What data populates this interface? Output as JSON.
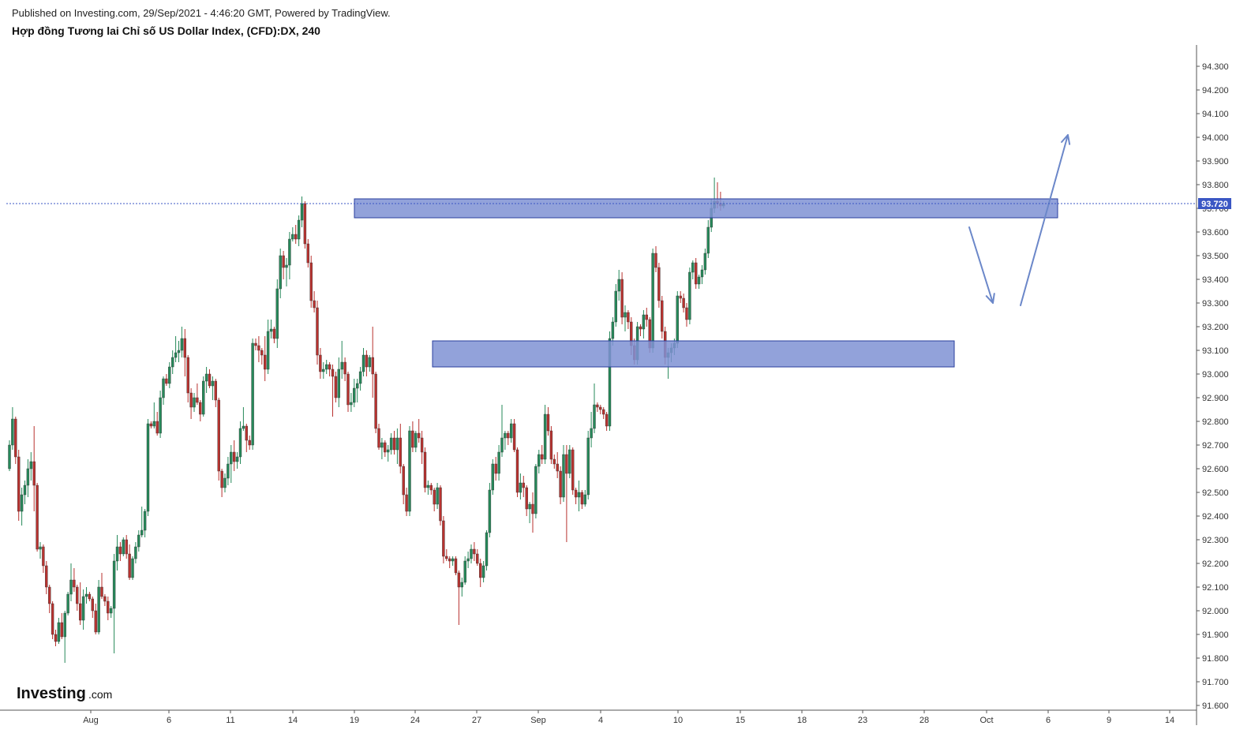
{
  "header": {
    "published": "Published on Investing.com, 29/Sep/2021 - 4:46:20 GMT, Powered by TradingView.",
    "title": "Hợp đồng Tương lai Chỉ số US Dollar Index, (CFD):DX, 240"
  },
  "logo": {
    "main": "Investing",
    "suffix": ".com"
  },
  "chart_data": {
    "type": "candlestick",
    "symbol": "DX",
    "interval": "240",
    "y_axis": {
      "range": [
        91.55,
        94.4
      ],
      "ticks": [
        "94.300",
        "94.200",
        "94.100",
        "94.000",
        "93.900",
        "93.800",
        "93.700",
        "93.600",
        "93.500",
        "93.400",
        "93.300",
        "93.200",
        "93.100",
        "93.000",
        "92.900",
        "92.800",
        "92.700",
        "92.600",
        "92.500",
        "92.400",
        "92.300",
        "92.200",
        "92.100",
        "92.000",
        "91.900",
        "91.800",
        "91.700",
        "91.600"
      ]
    },
    "x_axis": {
      "ticks": [
        "Aug",
        "6",
        "11",
        "14",
        "19",
        "24",
        "27",
        "Sep",
        "4",
        "10",
        "15",
        "18",
        "23",
        "28",
        "Oct",
        "6",
        "9",
        "14"
      ]
    },
    "last_price": {
      "value": 93.72,
      "label": "93.720"
    },
    "colors": {
      "up": "#26895a",
      "down": "#b8322f",
      "zone_fill": "#7f92d4",
      "zone_stroke": "#2a3f9e",
      "arrow": "#6b87c9",
      "last_price": "#3b57c4"
    },
    "zones": [
      {
        "name": "resistance-zone",
        "price_top": 93.74,
        "price_bottom": 93.66
      },
      {
        "name": "support-zone",
        "price_top": 93.14,
        "price_bottom": 93.03
      }
    ],
    "arrows": [
      {
        "name": "down-arrow",
        "from": 93.62,
        "to": 93.3
      },
      {
        "name": "up-arrow",
        "from": 93.29,
        "to": 94.01
      }
    ],
    "candles": [
      [
        92.6,
        92.72,
        92.59,
        92.7
      ],
      [
        92.7,
        92.86,
        92.68,
        92.81
      ],
      [
        92.81,
        92.82,
        92.62,
        92.65
      ],
      [
        92.65,
        92.68,
        92.38,
        92.42
      ],
      [
        92.42,
        92.52,
        92.36,
        92.49
      ],
      [
        92.49,
        92.55,
        92.45,
        92.53
      ],
      [
        92.53,
        92.64,
        92.48,
        92.6
      ],
      [
        92.6,
        92.67,
        92.55,
        92.63
      ],
      [
        92.63,
        92.78,
        92.42,
        92.53
      ],
      [
        92.53,
        92.54,
        92.25,
        92.26
      ],
      [
        92.26,
        92.29,
        92.22,
        92.27
      ],
      [
        92.27,
        92.28,
        92.16,
        92.19
      ],
      [
        92.19,
        92.21,
        92.07,
        92.1
      ],
      [
        92.1,
        92.11,
        91.99,
        92.03
      ],
      [
        92.03,
        92.04,
        91.88,
        91.9
      ],
      [
        91.9,
        91.92,
        91.85,
        91.87
      ],
      [
        91.87,
        91.97,
        91.86,
        91.95
      ],
      [
        91.95,
        91.99,
        91.88,
        91.89
      ],
      [
        91.89,
        92.0,
        91.78,
        91.99
      ],
      [
        91.99,
        92.08,
        91.98,
        92.07
      ],
      [
        92.07,
        92.2,
        92.04,
        92.13
      ],
      [
        92.13,
        92.18,
        92.08,
        92.1
      ],
      [
        92.1,
        92.11,
        92.0,
        92.03
      ],
      [
        92.03,
        92.12,
        91.94,
        91.96
      ],
      [
        91.96,
        92.09,
        91.92,
        92.06
      ],
      [
        92.06,
        92.1,
        92.03,
        92.07
      ],
      [
        92.07,
        92.08,
        92.04,
        92.05
      ],
      [
        92.05,
        92.06,
        91.97,
        92.0
      ],
      [
        92.0,
        92.03,
        91.9,
        91.91
      ],
      [
        91.91,
        92.13,
        91.9,
        92.1
      ],
      [
        92.1,
        92.16,
        92.05,
        92.06
      ],
      [
        92.06,
        92.07,
        92.02,
        92.04
      ],
      [
        92.04,
        92.06,
        91.96,
        91.99
      ],
      [
        91.99,
        92.02,
        91.97,
        92.01
      ],
      [
        92.01,
        92.24,
        91.82,
        92.21
      ],
      [
        92.21,
        92.32,
        92.17,
        92.27
      ],
      [
        92.27,
        92.29,
        92.21,
        92.24
      ],
      [
        92.24,
        92.31,
        92.23,
        92.3
      ],
      [
        92.3,
        92.32,
        92.22,
        92.24
      ],
      [
        92.24,
        92.28,
        92.13,
        92.14
      ],
      [
        92.14,
        92.23,
        92.13,
        92.22
      ],
      [
        92.22,
        92.29,
        92.2,
        92.27
      ],
      [
        92.27,
        92.34,
        92.25,
        92.32
      ],
      [
        92.32,
        92.44,
        92.31,
        92.34
      ],
      [
        92.34,
        92.43,
        92.31,
        92.42
      ],
      [
        92.42,
        92.81,
        92.4,
        92.79
      ],
      [
        92.79,
        92.8,
        92.77,
        92.78
      ],
      [
        92.78,
        92.88,
        92.77,
        92.8
      ],
      [
        92.8,
        92.84,
        92.74,
        92.75
      ],
      [
        92.75,
        92.93,
        92.73,
        92.9
      ],
      [
        92.9,
        92.99,
        92.87,
        92.98
      ],
      [
        92.98,
        93.0,
        92.95,
        92.96
      ],
      [
        92.96,
        93.05,
        92.94,
        93.03
      ],
      [
        93.03,
        93.1,
        93.0,
        93.07
      ],
      [
        93.07,
        93.16,
        93.05,
        93.09
      ],
      [
        93.09,
        93.14,
        93.05,
        93.1
      ],
      [
        93.1,
        93.2,
        93.07,
        93.15
      ],
      [
        93.15,
        93.19,
        92.99,
        93.07
      ],
      [
        93.07,
        93.08,
        92.88,
        92.92
      ],
      [
        92.92,
        92.94,
        92.81,
        92.86
      ],
      [
        92.86,
        92.92,
        92.84,
        92.9
      ],
      [
        92.9,
        92.96,
        92.87,
        92.88
      ],
      [
        92.88,
        92.89,
        92.8,
        92.83
      ],
      [
        92.83,
        92.99,
        92.82,
        92.97
      ],
      [
        92.97,
        93.03,
        92.92,
        93.0
      ],
      [
        93.0,
        93.02,
        92.94,
        92.95
      ],
      [
        92.95,
        92.99,
        92.89,
        92.97
      ],
      [
        92.97,
        92.98,
        92.86,
        92.89
      ],
      [
        92.89,
        92.9,
        92.55,
        92.59
      ],
      [
        92.59,
        92.6,
        92.48,
        92.52
      ],
      [
        92.52,
        92.58,
        92.5,
        92.56
      ],
      [
        92.56,
        92.65,
        92.53,
        92.62
      ],
      [
        92.62,
        92.7,
        92.54,
        92.67
      ],
      [
        92.67,
        92.72,
        92.59,
        92.63
      ],
      [
        92.63,
        92.67,
        92.6,
        92.65
      ],
      [
        92.65,
        92.8,
        92.62,
        92.77
      ],
      [
        92.77,
        92.86,
        92.76,
        92.78
      ],
      [
        92.78,
        92.79,
        92.67,
        92.72
      ],
      [
        92.72,
        92.74,
        92.68,
        92.7
      ],
      [
        92.7,
        93.15,
        92.68,
        93.13
      ],
      [
        93.13,
        93.15,
        93.1,
        93.12
      ],
      [
        93.12,
        93.16,
        93.05,
        93.1
      ],
      [
        93.1,
        93.11,
        93.04,
        93.08
      ],
      [
        93.08,
        93.16,
        92.97,
        93.02
      ],
      [
        93.02,
        93.23,
        93.0,
        93.18
      ],
      [
        93.18,
        93.23,
        93.15,
        93.19
      ],
      [
        93.19,
        93.2,
        93.13,
        93.15
      ],
      [
        93.15,
        93.4,
        93.11,
        93.36
      ],
      [
        93.36,
        93.53,
        93.32,
        93.5
      ],
      [
        93.5,
        93.52,
        93.4,
        93.45
      ],
      [
        93.45,
        93.49,
        93.37,
        93.46
      ],
      [
        93.46,
        93.6,
        93.4,
        93.57
      ],
      [
        93.57,
        93.62,
        93.56,
        93.59
      ],
      [
        93.59,
        93.63,
        93.55,
        93.57
      ],
      [
        93.57,
        93.67,
        93.54,
        93.65
      ],
      [
        93.65,
        93.75,
        93.62,
        93.72
      ],
      [
        93.72,
        93.73,
        93.53,
        93.55
      ],
      [
        93.55,
        93.57,
        93.45,
        93.47
      ],
      [
        93.47,
        93.5,
        93.28,
        93.31
      ],
      [
        93.31,
        93.35,
        93.26,
        93.28
      ],
      [
        93.28,
        93.31,
        93.04,
        93.08
      ],
      [
        93.08,
        93.11,
        92.98,
        93.01
      ],
      [
        93.01,
        93.05,
        92.98,
        93.02
      ],
      [
        93.02,
        93.06,
        93.0,
        93.04
      ],
      [
        93.04,
        93.05,
        92.99,
        93.02
      ],
      [
        93.02,
        93.04,
        92.82,
        92.99
      ],
      [
        92.99,
        93.01,
        92.88,
        92.9
      ],
      [
        92.9,
        93.07,
        92.86,
        93.02
      ],
      [
        93.02,
        93.14,
        92.98,
        93.05
      ],
      [
        93.05,
        93.07,
        92.97,
        93.0
      ],
      [
        93.0,
        93.01,
        92.84,
        92.87
      ],
      [
        92.87,
        92.92,
        92.84,
        92.88
      ],
      [
        92.88,
        92.98,
        92.86,
        92.94
      ],
      [
        92.94,
        92.98,
        92.88,
        92.96
      ],
      [
        92.96,
        93.03,
        92.93,
        93.01
      ],
      [
        93.01,
        93.11,
        92.99,
        93.08
      ],
      [
        93.08,
        93.1,
        92.99,
        93.03
      ],
      [
        93.03,
        93.08,
        93.01,
        93.07
      ],
      [
        93.07,
        93.2,
        92.9,
        93.0
      ],
      [
        93.0,
        93.01,
        92.75,
        92.77
      ],
      [
        92.77,
        92.79,
        92.68,
        92.69
      ],
      [
        92.69,
        92.73,
        92.64,
        92.71
      ],
      [
        92.71,
        92.72,
        92.65,
        92.67
      ],
      [
        92.67,
        92.7,
        92.63,
        92.68
      ],
      [
        92.68,
        92.75,
        92.66,
        92.73
      ],
      [
        92.73,
        92.76,
        92.66,
        92.68
      ],
      [
        92.68,
        92.77,
        92.62,
        92.73
      ],
      [
        92.73,
        92.79,
        92.58,
        92.61
      ],
      [
        92.61,
        92.62,
        92.45,
        92.49
      ],
      [
        92.49,
        92.52,
        92.4,
        92.42
      ],
      [
        92.42,
        92.78,
        92.4,
        92.76
      ],
      [
        92.76,
        92.8,
        92.67,
        92.69
      ],
      [
        92.69,
        92.76,
        92.67,
        92.75
      ],
      [
        92.75,
        92.81,
        92.71,
        92.73
      ],
      [
        92.73,
        92.76,
        92.62,
        92.67
      ],
      [
        92.67,
        92.69,
        92.5,
        92.52
      ],
      [
        92.52,
        92.55,
        92.49,
        92.53
      ],
      [
        92.53,
        92.54,
        92.49,
        92.51
      ],
      [
        92.51,
        92.52,
        92.42,
        92.45
      ],
      [
        92.45,
        92.54,
        92.43,
        92.52
      ],
      [
        92.52,
        92.53,
        92.36,
        92.38
      ],
      [
        92.38,
        92.4,
        92.2,
        92.23
      ],
      [
        92.23,
        92.26,
        92.21,
        92.22
      ],
      [
        92.22,
        92.23,
        92.18,
        92.21
      ],
      [
        92.21,
        92.23,
        92.19,
        92.22
      ],
      [
        92.22,
        92.23,
        92.15,
        92.16
      ],
      [
        92.16,
        92.17,
        91.94,
        92.1
      ],
      [
        92.1,
        92.14,
        92.06,
        92.12
      ],
      [
        92.12,
        92.23,
        92.11,
        92.21
      ],
      [
        92.21,
        92.25,
        92.18,
        92.22
      ],
      [
        92.22,
        92.28,
        92.2,
        92.26
      ],
      [
        92.26,
        92.29,
        92.21,
        92.24
      ],
      [
        92.24,
        92.26,
        92.19,
        92.2
      ],
      [
        92.2,
        92.22,
        92.1,
        92.14
      ],
      [
        92.14,
        92.21,
        92.12,
        92.19
      ],
      [
        92.19,
        92.34,
        92.17,
        92.33
      ],
      [
        92.33,
        92.54,
        92.31,
        92.51
      ],
      [
        92.51,
        92.64,
        92.49,
        92.62
      ],
      [
        92.62,
        92.65,
        92.55,
        92.58
      ],
      [
        92.58,
        92.7,
        92.55,
        92.67
      ],
      [
        92.67,
        92.87,
        92.65,
        92.73
      ],
      [
        92.73,
        92.76,
        92.68,
        92.75
      ],
      [
        92.75,
        92.76,
        92.7,
        92.73
      ],
      [
        92.73,
        92.81,
        92.71,
        92.79
      ],
      [
        92.79,
        92.81,
        92.67,
        92.68
      ],
      [
        92.68,
        92.69,
        92.48,
        92.5
      ],
      [
        92.5,
        92.58,
        92.47,
        92.54
      ],
      [
        92.54,
        92.57,
        92.48,
        92.52
      ],
      [
        92.52,
        92.53,
        92.4,
        92.43
      ],
      [
        92.43,
        92.46,
        92.37,
        92.45
      ],
      [
        92.45,
        92.5,
        92.33,
        92.41
      ],
      [
        92.41,
        92.62,
        92.39,
        92.61
      ],
      [
        92.61,
        92.68,
        92.58,
        92.66
      ],
      [
        92.66,
        92.7,
        92.62,
        92.64
      ],
      [
        92.64,
        92.87,
        92.62,
        92.83
      ],
      [
        92.83,
        92.86,
        92.74,
        92.76
      ],
      [
        92.76,
        92.78,
        92.62,
        92.64
      ],
      [
        92.64,
        92.66,
        92.6,
        92.62
      ],
      [
        92.62,
        92.67,
        92.56,
        92.59
      ],
      [
        92.59,
        92.61,
        92.45,
        92.48
      ],
      [
        92.48,
        92.7,
        92.46,
        92.66
      ],
      [
        92.66,
        92.7,
        92.29,
        92.58
      ],
      [
        92.58,
        92.7,
        92.56,
        92.68
      ],
      [
        92.68,
        92.69,
        92.49,
        92.51
      ],
      [
        92.51,
        92.52,
        92.45,
        92.48
      ],
      [
        92.48,
        92.55,
        92.42,
        92.5
      ],
      [
        92.5,
        92.51,
        92.43,
        92.45
      ],
      [
        92.45,
        92.51,
        92.44,
        92.49
      ],
      [
        92.49,
        92.76,
        92.47,
        92.73
      ],
      [
        92.73,
        92.84,
        92.69,
        92.77
      ],
      [
        92.77,
        92.96,
        92.75,
        92.87
      ],
      [
        92.87,
        92.88,
        92.84,
        92.86
      ],
      [
        92.86,
        92.87,
        92.83,
        92.85
      ],
      [
        92.85,
        92.86,
        92.81,
        92.83
      ],
      [
        92.83,
        92.84,
        92.76,
        92.78
      ],
      [
        92.78,
        93.18,
        92.76,
        93.15
      ],
      [
        93.15,
        93.24,
        93.12,
        93.22
      ],
      [
        93.22,
        93.38,
        93.2,
        93.35
      ],
      [
        93.35,
        93.44,
        93.31,
        93.4
      ],
      [
        93.4,
        93.43,
        93.21,
        93.24
      ],
      [
        93.24,
        93.29,
        93.18,
        93.26
      ],
      [
        93.26,
        93.27,
        93.19,
        93.22
      ],
      [
        93.22,
        93.24,
        93.08,
        93.12
      ],
      [
        93.12,
        93.15,
        93.04,
        93.06
      ],
      [
        93.06,
        93.22,
        93.04,
        93.2
      ],
      [
        93.2,
        93.21,
        93.16,
        93.19
      ],
      [
        93.19,
        93.27,
        93.15,
        93.25
      ],
      [
        93.25,
        93.28,
        93.2,
        93.23
      ],
      [
        93.23,
        93.24,
        93.09,
        93.11
      ],
      [
        93.11,
        93.53,
        93.09,
        93.51
      ],
      [
        93.51,
        93.54,
        93.43,
        93.45
      ],
      [
        93.45,
        93.47,
        93.28,
        93.31
      ],
      [
        93.31,
        93.33,
        93.15,
        93.18
      ],
      [
        93.18,
        93.2,
        93.04,
        93.07
      ],
      [
        93.07,
        93.11,
        92.98,
        93.09
      ],
      [
        93.09,
        93.13,
        93.05,
        93.11
      ],
      [
        93.11,
        93.15,
        93.08,
        93.13
      ],
      [
        93.13,
        93.35,
        93.11,
        93.33
      ],
      [
        93.33,
        93.35,
        93.3,
        93.32
      ],
      [
        93.32,
        93.34,
        93.26,
        93.28
      ],
      [
        93.28,
        93.3,
        93.2,
        93.23
      ],
      [
        93.23,
        93.45,
        93.21,
        93.43
      ],
      [
        93.43,
        93.48,
        93.4,
        93.47
      ],
      [
        93.47,
        93.49,
        93.36,
        93.38
      ],
      [
        93.38,
        93.42,
        93.36,
        93.41
      ],
      [
        93.41,
        93.46,
        93.38,
        93.44
      ],
      [
        93.44,
        93.53,
        93.42,
        93.51
      ],
      [
        93.51,
        93.65,
        93.49,
        93.62
      ],
      [
        93.62,
        93.74,
        93.6,
        93.7
      ],
      [
        93.7,
        93.83,
        93.68,
        93.73
      ],
      [
        93.73,
        93.81,
        93.7,
        93.72
      ],
      [
        93.72,
        93.77,
        93.69,
        93.71
      ],
      [
        93.71,
        93.73,
        93.7,
        93.72
      ]
    ]
  }
}
